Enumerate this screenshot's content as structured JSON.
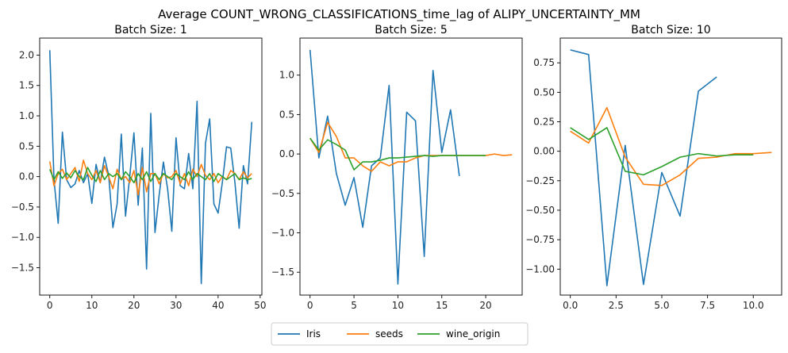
{
  "figure": {
    "suptitle": "Average COUNT_WRONG_CLASSIFICATIONS_time_lag of ALIPY_UNCERTAINTY_MM"
  },
  "colors": {
    "Iris": "#1f77b4",
    "seeds": "#ff7f0e",
    "wine_origin": "#2ca02c"
  },
  "legend": {
    "placement": "bottom-center",
    "entries": [
      "Iris",
      "seeds",
      "wine_origin"
    ]
  },
  "chart_data": [
    {
      "type": "line",
      "title": "Batch Size: 1",
      "xlabel": "",
      "ylabel": "",
      "xlim": [
        -2.4,
        50.4
      ],
      "ylim": [
        -1.95,
        2.28
      ],
      "xticks": [
        0,
        10,
        20,
        30,
        40,
        50
      ],
      "xtick_labels": [
        "0",
        "10",
        "20",
        "30",
        "40",
        "50"
      ],
      "yticks": [
        -1.5,
        -1.0,
        -0.5,
        0.0,
        0.5,
        1.0,
        1.5,
        2.0
      ],
      "ytick_labels": [
        "−1.5",
        "−1.0",
        "−0.5",
        "0.0",
        "0.5",
        "1.0",
        "1.5",
        "2.0"
      ],
      "grid": false,
      "series": [
        {
          "name": "Iris",
          "x": [
            0,
            1,
            2,
            3,
            4,
            5,
            6,
            7,
            8,
            9,
            10,
            11,
            12,
            13,
            14,
            15,
            16,
            17,
            18,
            19,
            20,
            21,
            22,
            23,
            24,
            25,
            26,
            27,
            28,
            29,
            30,
            31,
            32,
            33,
            34,
            35,
            36,
            37,
            38,
            39,
            40,
            41,
            42,
            43,
            44,
            45,
            46,
            47,
            48
          ],
          "y": [
            2.08,
            -0.05,
            -0.77,
            0.73,
            -0.05,
            -0.18,
            -0.12,
            0.1,
            -0.1,
            0.05,
            -0.44,
            0.2,
            -0.1,
            0.32,
            0.02,
            -0.84,
            -0.45,
            0.7,
            -0.65,
            0.0,
            0.72,
            -0.47,
            0.47,
            -1.52,
            1.04,
            -0.92,
            -0.3,
            0.24,
            -0.2,
            -0.9,
            0.64,
            -0.15,
            -0.2,
            0.38,
            -0.2,
            1.24,
            -1.76,
            0.55,
            0.95,
            -0.45,
            -0.6,
            -0.1,
            0.49,
            0.47,
            -0.1,
            -0.85,
            0.18,
            -0.12,
            0.9
          ]
        },
        {
          "name": "seeds",
          "x": [
            0,
            1,
            2,
            3,
            4,
            5,
            6,
            7,
            8,
            9,
            10,
            11,
            12,
            13,
            14,
            15,
            16,
            17,
            18,
            19,
            20,
            21,
            22,
            23,
            24,
            25,
            26,
            27,
            28,
            29,
            30,
            31,
            32,
            33,
            34,
            35,
            36,
            37,
            38,
            39,
            40,
            41,
            42,
            43,
            44,
            45,
            46,
            47,
            48
          ],
          "y": [
            0.25,
            -0.15,
            0.05,
            0.12,
            -0.05,
            0.05,
            0.15,
            -0.08,
            0.27,
            0.05,
            -0.05,
            0.1,
            -0.1,
            0.18,
            0.0,
            -0.2,
            0.12,
            -0.05,
            0.0,
            -0.1,
            0.1,
            -0.3,
            0.15,
            -0.25,
            0.05,
            0.05,
            -0.12,
            0.05,
            -0.02,
            0.0,
            0.1,
            -0.12,
            0.05,
            -0.15,
            0.12,
            0.0,
            0.2,
            0.02,
            -0.05,
            0.05,
            -0.1,
            0.0,
            -0.05,
            0.1,
            0.05,
            -0.05,
            0.08,
            -0.02,
            0.05
          ]
        },
        {
          "name": "wine_origin",
          "x": [
            0,
            1,
            2,
            3,
            4,
            5,
            6,
            7,
            8,
            9,
            10,
            11,
            12,
            13,
            14,
            15,
            16,
            17,
            18,
            19,
            20,
            21,
            22,
            23,
            24,
            25,
            26,
            27,
            28,
            29,
            30,
            31,
            32,
            33,
            34,
            35,
            36,
            37,
            38,
            39,
            40,
            41,
            42,
            43,
            44,
            45,
            46,
            47,
            48
          ],
          "y": [
            0.12,
            -0.05,
            0.08,
            -0.03,
            0.06,
            -0.02,
            0.1,
            0.0,
            -0.05,
            0.15,
            0.02,
            -0.08,
            0.1,
            -0.05,
            0.05,
            0.0,
            0.05,
            -0.05,
            0.08,
            0.0,
            -0.1,
            0.05,
            -0.05,
            0.08,
            -0.08,
            0.05,
            -0.05,
            0.05,
            0.0,
            -0.05,
            0.05,
            0.0,
            -0.05,
            0.08,
            -0.05,
            0.05,
            0.0,
            -0.05,
            0.05,
            -0.08,
            0.05,
            0.0,
            -0.05,
            0.0,
            0.05,
            -0.05,
            -0.02,
            -0.05,
            -0.03
          ]
        }
      ]
    },
    {
      "type": "line",
      "title": "Batch Size: 5",
      "xlabel": "",
      "ylabel": "",
      "xlim": [
        -1.15,
        24.15
      ],
      "ylim": [
        -1.79,
        1.47
      ],
      "xticks": [
        0,
        5,
        10,
        15,
        20
      ],
      "xtick_labels": [
        "0",
        "5",
        "10",
        "15",
        "20"
      ],
      "yticks": [
        -1.5,
        -1.0,
        -0.5,
        0.0,
        0.5,
        1.0
      ],
      "ytick_labels": [
        "−1.5",
        "−1.0",
        "−0.5",
        "0.0",
        "0.5",
        "1.0"
      ],
      "grid": false,
      "series": [
        {
          "name": "Iris",
          "x": [
            0,
            1,
            2,
            3,
            4,
            5,
            6,
            7,
            8,
            9,
            10,
            11,
            12,
            13,
            14,
            15,
            16,
            17
          ],
          "y": [
            1.32,
            -0.05,
            0.48,
            -0.25,
            -0.65,
            -0.3,
            -0.93,
            -0.15,
            -0.05,
            0.87,
            -1.65,
            0.53,
            0.42,
            -1.3,
            1.06,
            0.02,
            0.56,
            -0.28
          ]
        },
        {
          "name": "seeds",
          "x": [
            0,
            1,
            2,
            3,
            4,
            5,
            6,
            7,
            8,
            9,
            10,
            11,
            12,
            13,
            14,
            15,
            16,
            17,
            18,
            19,
            20,
            21,
            22,
            23
          ],
          "y": [
            0.2,
            0.02,
            0.4,
            0.22,
            -0.05,
            -0.05,
            -0.15,
            -0.22,
            -0.1,
            -0.15,
            -0.1,
            -0.1,
            -0.05,
            -0.02,
            -0.02,
            -0.02,
            -0.02,
            -0.02,
            -0.02,
            -0.02,
            -0.02,
            0.0,
            -0.02,
            -0.01
          ]
        },
        {
          "name": "wine_origin",
          "x": [
            0,
            1,
            2,
            3,
            4,
            5,
            6,
            7,
            8,
            9,
            10,
            11,
            12,
            13,
            14,
            15,
            16,
            17,
            18,
            19,
            20
          ],
          "y": [
            0.2,
            0.05,
            0.18,
            0.12,
            0.05,
            -0.2,
            -0.1,
            -0.1,
            -0.08,
            -0.05,
            -0.05,
            -0.04,
            -0.03,
            -0.02,
            -0.03,
            -0.02,
            -0.02,
            -0.02,
            -0.02,
            -0.02,
            -0.02
          ]
        }
      ]
    },
    {
      "type": "line",
      "title": "Batch Size: 10",
      "xlabel": "",
      "ylabel": "",
      "xlim": [
        -0.55,
        11.55
      ],
      "ylim": [
        -1.22,
        0.96
      ],
      "xticks": [
        0.0,
        2.5,
        5.0,
        7.5,
        10.0
      ],
      "xtick_labels": [
        "0.0",
        "2.5",
        "5.0",
        "7.5",
        "10.0"
      ],
      "yticks": [
        -1.0,
        -0.75,
        -0.5,
        -0.25,
        0.0,
        0.25,
        0.5,
        0.75
      ],
      "ytick_labels": [
        "−1.00",
        "−0.75",
        "−0.50",
        "−0.25",
        "0.00",
        "0.25",
        "0.50",
        "0.75"
      ],
      "grid": false,
      "series": [
        {
          "name": "Iris",
          "x": [
            0,
            1,
            2,
            3,
            4,
            5,
            6,
            7,
            8
          ],
          "y": [
            0.86,
            0.82,
            -1.14,
            0.05,
            -1.13,
            -0.18,
            -0.55,
            0.51,
            0.63
          ]
        },
        {
          "name": "seeds",
          "x": [
            0,
            1,
            2,
            3,
            4,
            5,
            6,
            7,
            8,
            9,
            10,
            11
          ],
          "y": [
            0.17,
            0.07,
            0.37,
            -0.05,
            -0.28,
            -0.29,
            -0.2,
            -0.06,
            -0.05,
            -0.02,
            -0.02,
            -0.01
          ]
        },
        {
          "name": "wine_origin",
          "x": [
            0,
            1,
            2,
            3,
            4,
            5,
            6,
            7,
            8,
            9,
            10
          ],
          "y": [
            0.2,
            0.1,
            0.2,
            -0.17,
            -0.2,
            -0.13,
            -0.05,
            -0.02,
            -0.04,
            -0.03,
            -0.03
          ]
        }
      ]
    }
  ]
}
